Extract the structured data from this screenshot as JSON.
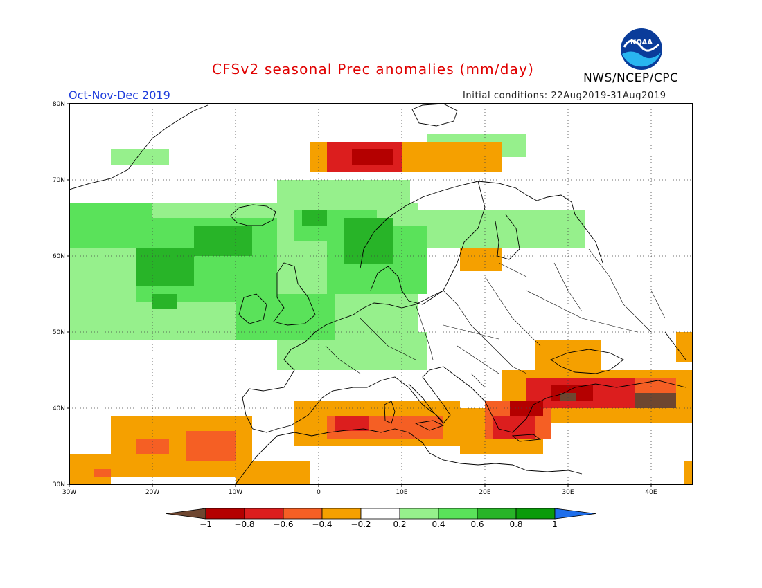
{
  "header": {
    "title": "CFSv2 seasonal Prec anomalies (mm/day)",
    "season": "Oct-Nov-Dec 2019",
    "initial_conditions": "Initial conditions: 22Aug2019-31Aug2019",
    "agency": "NWS/NCEP/CPC",
    "logo_text": "NOAA"
  },
  "map": {
    "lon_range": [
      -30,
      45
    ],
    "lat_range": [
      30,
      80
    ],
    "lon_ticks": [
      {
        "value": -30,
        "label": "30W"
      },
      {
        "value": -20,
        "label": "20W"
      },
      {
        "value": -10,
        "label": "10W"
      },
      {
        "value": 0,
        "label": "0"
      },
      {
        "value": 10,
        "label": "10E"
      },
      {
        "value": 20,
        "label": "20E"
      },
      {
        "value": 30,
        "label": "30E"
      },
      {
        "value": 40,
        "label": "40E"
      }
    ],
    "lat_ticks": [
      {
        "value": 30,
        "label": "30N"
      },
      {
        "value": 40,
        "label": "40N"
      },
      {
        "value": 50,
        "label": "50N"
      },
      {
        "value": 60,
        "label": "60N"
      },
      {
        "value": 70,
        "label": "70N"
      },
      {
        "value": 80,
        "label": "80N"
      }
    ],
    "gridlines": "dotted",
    "anomaly_regions": [
      {
        "level": 0.3,
        "lon": [
          -25,
          -18
        ],
        "lat": [
          72,
          74
        ]
      },
      {
        "level": 0.3,
        "lon": [
          -30,
          12
        ],
        "lat": [
          49,
          67
        ]
      },
      {
        "level": 0.3,
        "lon": [
          -25,
          -15
        ],
        "lat": [
          52,
          62
        ]
      },
      {
        "level": 0.3,
        "lon": [
          -5,
          13
        ],
        "lat": [
          45,
          50
        ]
      },
      {
        "level": 0.3,
        "lon": [
          -5,
          11
        ],
        "lat": [
          63,
          70
        ]
      },
      {
        "level": 0.3,
        "lon": [
          12,
          32
        ],
        "lat": [
          61,
          66
        ]
      },
      {
        "level": 0.3,
        "lon": [
          13,
          25
        ],
        "lat": [
          73,
          76
        ]
      },
      {
        "level": 0.5,
        "lon": [
          -30,
          -20
        ],
        "lat": [
          61,
          67
        ]
      },
      {
        "level": 0.5,
        "lon": [
          -22,
          -5
        ],
        "lat": [
          54,
          65
        ]
      },
      {
        "level": 0.5,
        "lon": [
          -10,
          2
        ],
        "lat": [
          49,
          55
        ]
      },
      {
        "level": 0.5,
        "lon": [
          1,
          13
        ],
        "lat": [
          55,
          64
        ]
      },
      {
        "level": 0.5,
        "lon": [
          -3,
          7
        ],
        "lat": [
          62,
          66
        ]
      },
      {
        "level": 0.7,
        "lon": [
          -22,
          -15
        ],
        "lat": [
          56,
          61
        ]
      },
      {
        "level": 0.7,
        "lon": [
          -15,
          -8
        ],
        "lat": [
          60,
          64
        ]
      },
      {
        "level": 0.7,
        "lon": [
          -20,
          -17
        ],
        "lat": [
          53,
          55
        ]
      },
      {
        "level": 0.7,
        "lon": [
          3,
          9
        ],
        "lat": [
          59,
          65
        ]
      },
      {
        "level": 0.7,
        "lon": [
          -2,
          1
        ],
        "lat": [
          64,
          66
        ]
      },
      {
        "level": -0.3,
        "lon": [
          -1,
          22
        ],
        "lat": [
          71,
          75
        ]
      },
      {
        "level": -0.3,
        "lon": [
          -25,
          -8
        ],
        "lat": [
          31,
          39
        ]
      },
      {
        "level": -0.3,
        "lon": [
          -30,
          -25
        ],
        "lat": [
          30,
          34
        ]
      },
      {
        "level": -0.3,
        "lon": [
          -10,
          -1
        ],
        "lat": [
          30,
          33
        ]
      },
      {
        "level": -0.3,
        "lon": [
          -3,
          17
        ],
        "lat": [
          35,
          41
        ]
      },
      {
        "level": -0.3,
        "lon": [
          17,
          27
        ],
        "lat": [
          34,
          40
        ]
      },
      {
        "level": -0.3,
        "lon": [
          22,
          45
        ],
        "lat": [
          38,
          45
        ]
      },
      {
        "level": -0.3,
        "lon": [
          26,
          34
        ],
        "lat": [
          45,
          49
        ]
      },
      {
        "level": -0.3,
        "lon": [
          17,
          22
        ],
        "lat": [
          58,
          61
        ]
      },
      {
        "level": -0.3,
        "lon": [
          43,
          45
        ],
        "lat": [
          46,
          50
        ]
      },
      {
        "level": -0.3,
        "lon": [
          44,
          45
        ],
        "lat": [
          30,
          33
        ]
      },
      {
        "level": -0.5,
        "lon": [
          1,
          15
        ],
        "lat": [
          36,
          39
        ]
      },
      {
        "level": -0.5,
        "lon": [
          3,
          8
        ],
        "lat": [
          72,
          75
        ]
      },
      {
        "level": -0.5,
        "lon": [
          -16,
          -10
        ],
        "lat": [
          33,
          37
        ]
      },
      {
        "level": -0.5,
        "lon": [
          -22,
          -18
        ],
        "lat": [
          34,
          36
        ]
      },
      {
        "level": -0.5,
        "lon": [
          -27,
          -25
        ],
        "lat": [
          31,
          32
        ]
      },
      {
        "level": -0.5,
        "lon": [
          20,
          28
        ],
        "lat": [
          36,
          41
        ]
      },
      {
        "level": -0.5,
        "lon": [
          25,
          43
        ],
        "lat": [
          41,
          44
        ]
      },
      {
        "level": -0.7,
        "lon": [
          1,
          10
        ],
        "lat": [
          71,
          75
        ]
      },
      {
        "level": -0.7,
        "lon": [
          21,
          26
        ],
        "lat": [
          36,
          39
        ]
      },
      {
        "level": -0.7,
        "lon": [
          25,
          38
        ],
        "lat": [
          40,
          44
        ]
      },
      {
        "level": -0.7,
        "lon": [
          2,
          6
        ],
        "lat": [
          37,
          39
        ]
      },
      {
        "level": -0.9,
        "lon": [
          4,
          9
        ],
        "lat": [
          72,
          74
        ]
      },
      {
        "level": -0.9,
        "lon": [
          23,
          27
        ],
        "lat": [
          39,
          41
        ]
      },
      {
        "level": -0.9,
        "lon": [
          28,
          33
        ],
        "lat": [
          41,
          43
        ]
      },
      {
        "level": -1.1,
        "lon": [
          38,
          43
        ],
        "lat": [
          40,
          42
        ]
      },
      {
        "level": -1.1,
        "lon": [
          29,
          31
        ],
        "lat": [
          41,
          42
        ]
      }
    ]
  },
  "colorbar": {
    "labels": [
      "-1",
      "-0.8",
      "-0.6",
      "-0.4",
      "-0.2",
      "0.2",
      "0.4",
      "0.6",
      "0.8",
      "1"
    ],
    "colors": {
      "below_-1": "#6e4630",
      "-1_-0.8": "#b40000",
      "-0.8_-0.6": "#dc1e1e",
      "-0.6_-0.4": "#f55f24",
      "-0.4_-0.2": "#f5a000",
      "-0.2_0.2": "#ffffff",
      "0.2_0.4": "#96f08c",
      "0.4_0.6": "#5ae25a",
      "0.6_0.8": "#28b428",
      "0.8_1": "#0a9b0a",
      "above_1": "#1e6eeb"
    }
  }
}
